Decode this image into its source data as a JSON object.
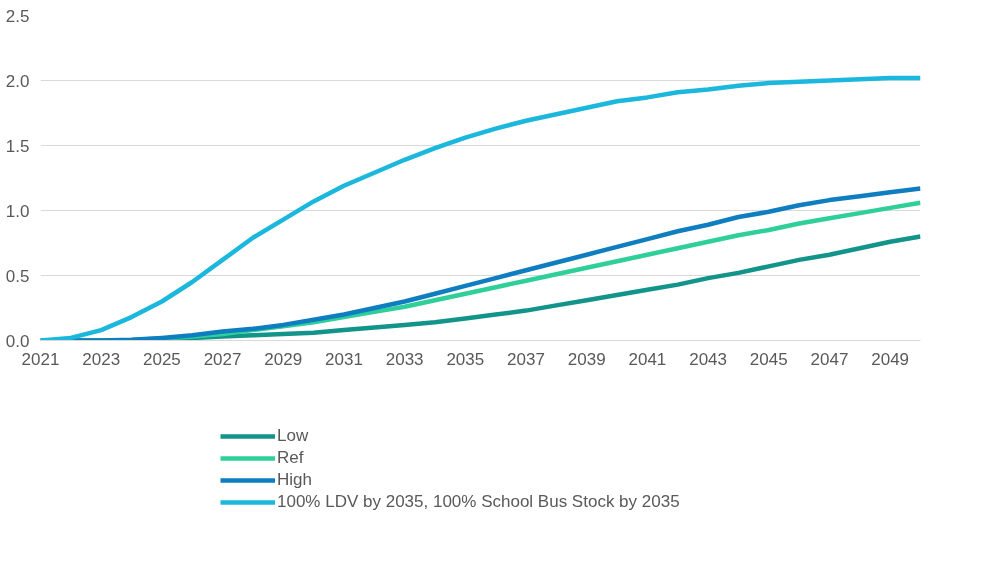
{
  "chart_data": {
    "type": "line",
    "x": [
      2021,
      2022,
      2023,
      2024,
      2025,
      2026,
      2027,
      2028,
      2029,
      2030,
      2031,
      2032,
      2033,
      2034,
      2035,
      2036,
      2037,
      2038,
      2039,
      2040,
      2041,
      2042,
      2043,
      2044,
      2045,
      2046,
      2047,
      2048,
      2049,
      2050
    ],
    "series": [
      {
        "name": "Low",
        "color": "#12948a",
        "values": [
          0,
          0,
          0,
          0,
          0.01,
          0.02,
          0.03,
          0.04,
          0.05,
          0.06,
          0.08,
          0.1,
          0.12,
          0.14,
          0.17,
          0.2,
          0.23,
          0.27,
          0.31,
          0.35,
          0.39,
          0.43,
          0.48,
          0.52,
          0.57,
          0.62,
          0.66,
          0.71,
          0.76,
          0.8
        ]
      },
      {
        "name": "Ref",
        "color": "#2fcf9a",
        "values": [
          0,
          0,
          0,
          0.003,
          0.015,
          0.03,
          0.05,
          0.08,
          0.11,
          0.14,
          0.18,
          0.22,
          0.26,
          0.31,
          0.36,
          0.41,
          0.46,
          0.51,
          0.56,
          0.61,
          0.66,
          0.71,
          0.76,
          0.81,
          0.85,
          0.9,
          0.94,
          0.98,
          1.02,
          1.06
        ]
      },
      {
        "name": "High",
        "color": "#0f7ec0",
        "values": [
          0,
          0,
          0,
          0.005,
          0.02,
          0.04,
          0.07,
          0.09,
          0.12,
          0.16,
          0.2,
          0.25,
          0.3,
          0.36,
          0.42,
          0.48,
          0.54,
          0.6,
          0.66,
          0.72,
          0.78,
          0.84,
          0.89,
          0.95,
          0.99,
          1.04,
          1.08,
          1.11,
          1.14,
          1.17
        ]
      },
      {
        "name": "100% LDV by 2035, 100% School Bus Stock by 2035",
        "color": "#1bb7dc",
        "values": [
          0,
          0.02,
          0.08,
          0.18,
          0.3,
          0.45,
          0.62,
          0.79,
          0.93,
          1.07,
          1.19,
          1.29,
          1.39,
          1.48,
          1.56,
          1.63,
          1.69,
          1.74,
          1.79,
          1.84,
          1.87,
          1.91,
          1.93,
          1.96,
          1.98,
          1.99,
          2.0,
          2.01,
          2.02,
          2.02
        ]
      }
    ],
    "xlim": [
      2021,
      2050
    ],
    "xticks": [
      2021,
      2023,
      2025,
      2027,
      2029,
      2031,
      2033,
      2035,
      2037,
      2039,
      2041,
      2043,
      2045,
      2047,
      2049
    ],
    "ylim": [
      0,
      2.5
    ],
    "yticks": [
      {
        "value": 0,
        "label": "0.0"
      },
      {
        "value": 0.5,
        "label": "0.5"
      },
      {
        "value": 1,
        "label": "1.0"
      },
      {
        "value": 1.5,
        "label": "1.5"
      },
      {
        "value": 2,
        "label": "2.0"
      },
      {
        "value": 2.5,
        "label": "2.5"
      }
    ],
    "grid": "y",
    "legend": "bottom",
    "marker": "none",
    "line_style": "solid"
  }
}
